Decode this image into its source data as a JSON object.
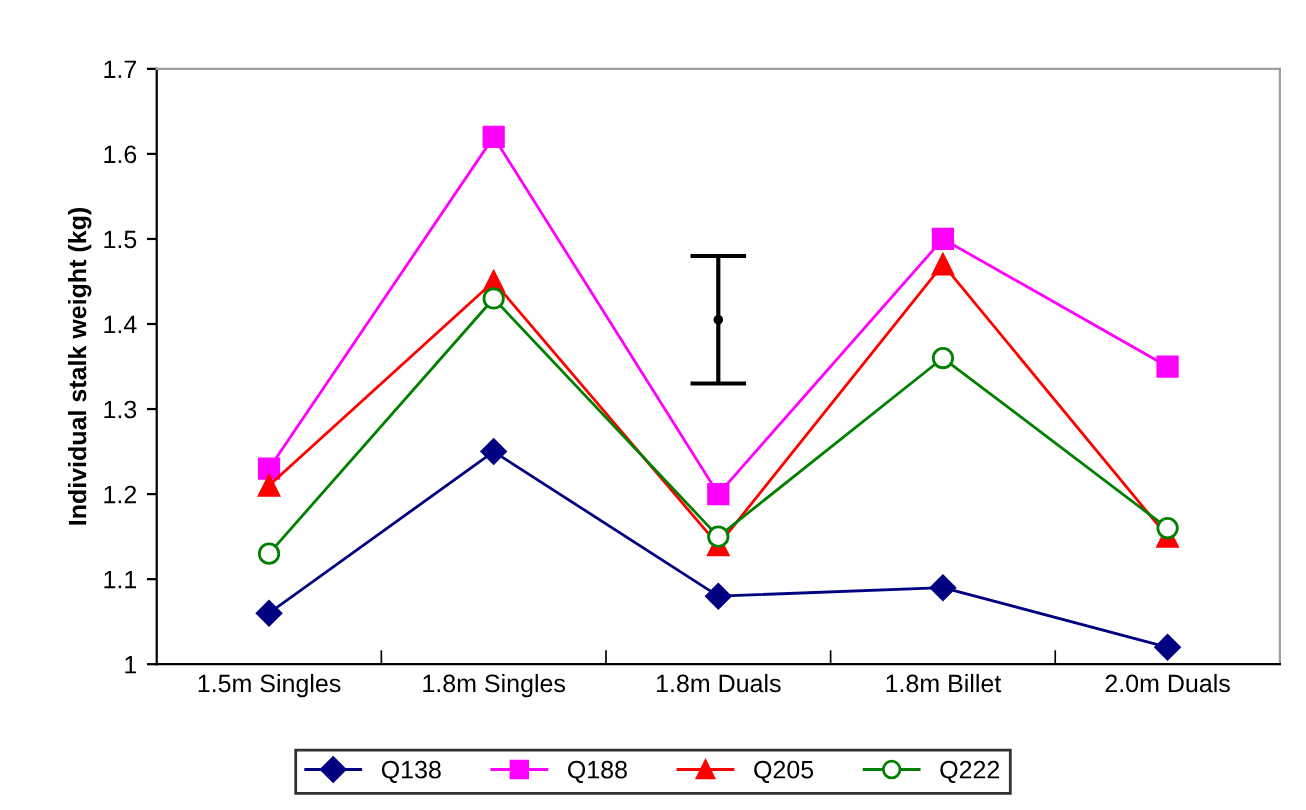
{
  "chart_data": {
    "type": "line",
    "ylabel": "Individual stalk weight (kg)",
    "categories": [
      "1.5m Singles",
      "1.8m Singles",
      "1.8m Duals",
      "1.8m Billet",
      "2.0m Duals"
    ],
    "series": [
      {
        "name": "Q138",
        "color": "#000080",
        "marker": "diamond",
        "values": [
          1.06,
          1.25,
          1.08,
          1.09,
          1.02
        ]
      },
      {
        "name": "Q188",
        "color": "#ff00ff",
        "marker": "square",
        "values": [
          1.23,
          1.62,
          1.2,
          1.5,
          1.35
        ]
      },
      {
        "name": "Q205",
        "color": "#ff0000",
        "marker": "triangle",
        "values": [
          1.21,
          1.45,
          1.14,
          1.47,
          1.15
        ]
      },
      {
        "name": "Q222",
        "color": "#008000",
        "marker": "circle",
        "values": [
          1.13,
          1.43,
          1.15,
          1.36,
          1.16
        ]
      },
      {
        "type": "scatter",
        "color": "#000000",
        "marker": "none",
        "values": [
          null,
          null,
          1.405,
          null,
          null
        ],
        "errors": [
          null,
          null,
          0.075,
          null,
          null
        ]
      }
    ],
    "ylim": [
      1,
      1.7
    ],
    "yticks": [
      1,
      1.1,
      1.2,
      1.3,
      1.4,
      1.5,
      1.6,
      1.7
    ],
    "grid": false,
    "legend": "bottom"
  }
}
